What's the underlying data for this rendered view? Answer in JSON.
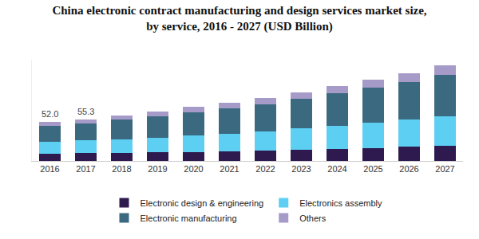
{
  "chart_data": {
    "type": "bar",
    "stacked": true,
    "title": "China electronic contract manufacturing and design services market size,\nby service, 2016 - 2027 (USD Billion)",
    "categories": [
      "2016",
      "2017",
      "2018",
      "2019",
      "2020",
      "2021",
      "2022",
      "2023",
      "2024",
      "2025",
      "2026",
      "2027"
    ],
    "series": [
      {
        "name": "Electronic design & engineering",
        "color": "#2e1a4f",
        "values": [
          9.5,
          10.2,
          10.7,
          11.3,
          12.2,
          13.0,
          13.8,
          15.0,
          16.2,
          17.5,
          18.8,
          20.3
        ]
      },
      {
        "name": "Electronics assembly",
        "color": "#5ccff3",
        "values": [
          15.6,
          17.1,
          18.4,
          20.0,
          22.0,
          23.6,
          25.8,
          28.2,
          30.6,
          33.3,
          36.0,
          39.3
        ]
      },
      {
        "name": "Electronic manufacturing",
        "color": "#3b6a80",
        "values": [
          21.7,
          22.6,
          25.8,
          28.2,
          30.8,
          33.2,
          36.4,
          39.8,
          43.3,
          47.1,
          50.9,
          55.6
        ]
      },
      {
        "name": "Others",
        "color": "#a69ac9",
        "values": [
          5.2,
          5.4,
          5.8,
          6.4,
          7.0,
          7.4,
          8.1,
          8.9,
          9.6,
          10.5,
          11.3,
          12.3
        ]
      }
    ],
    "annotations": [
      {
        "category": "2016",
        "value": 52.0,
        "text": "52.0"
      },
      {
        "category": "2017",
        "value": 55.3,
        "text": "55.3"
      }
    ],
    "ylim": [
      0,
      135
    ],
    "tick_labels": "x",
    "grid": false,
    "legend": "bottom"
  }
}
